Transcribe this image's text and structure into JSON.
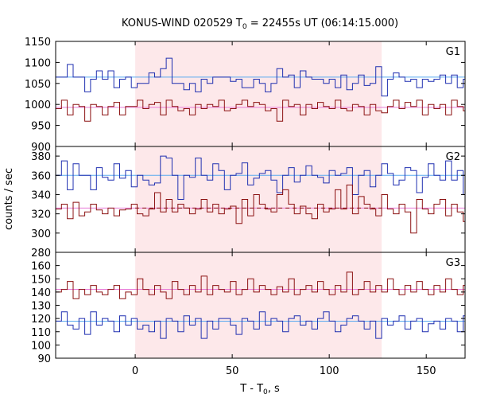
{
  "chart_data": {
    "type": "line",
    "title_main": "KONUS-WIND 020529 T",
    "title_sub": "0",
    "title_rest": " = 22455s UT (06:14:15.000)",
    "xlabel_main": "T - T",
    "xlabel_sub": "0",
    "xlabel_rest": ", s",
    "ylabel": "counts / sec",
    "xlim": [
      -41,
      170
    ],
    "xticks": [
      0,
      50,
      100,
      150
    ],
    "shaded_interval": [
      0,
      127
    ],
    "colors": {
      "shade": "#fde8ea",
      "blue": "#1f2fb0",
      "red": "#8b1010",
      "bg_blue": "#5aaaf0",
      "bg_pink": "#e87ad8"
    },
    "bin_width": 3,
    "x_start": -41,
    "panels": [
      {
        "label": "G1",
        "ylim": [
          900,
          1150
        ],
        "yticks": [
          900,
          950,
          1000,
          1050,
          1100,
          1150
        ],
        "background_blue": 1065,
        "background_pink": 993,
        "background_dashed": null,
        "series_blue": [
          1065,
          1065,
          1095,
          1065,
          1065,
          1030,
          1060,
          1080,
          1060,
          1080,
          1040,
          1060,
          1065,
          1040,
          1050,
          1050,
          1075,
          1065,
          1085,
          1110,
          1050,
          1050,
          1035,
          1050,
          1030,
          1060,
          1050,
          1065,
          1065,
          1065,
          1055,
          1060,
          1040,
          1040,
          1060,
          1050,
          1030,
          1050,
          1085,
          1065,
          1070,
          1040,
          1080,
          1065,
          1060,
          1060,
          1050,
          1060,
          1040,
          1070,
          1035,
          1050,
          1070,
          1045,
          1050,
          1090,
          1020,
          1060,
          1075,
          1065,
          1055,
          1060,
          1040,
          1060,
          1055,
          1060,
          1070,
          1050,
          1070,
          1040,
          1060
        ],
        "series_red": [
          990,
          1010,
          975,
          1000,
          995,
          960,
          1000,
          995,
          975,
          995,
          1005,
          975,
          995,
          995,
          1010,
          990,
          1000,
          1005,
          975,
          1010,
          995,
          985,
          990,
          975,
          1000,
          990,
          1000,
          995,
          1010,
          985,
          990,
          1000,
          1010,
          995,
          1005,
          1000,
          985,
          990,
          960,
          1010,
          995,
          1000,
          975,
          1000,
          990,
          1005,
          995,
          990,
          1010,
          990,
          985,
          1000,
          995,
          975,
          1000,
          985,
          980,
          995,
          1010,
          990,
          1005,
          995,
          1010,
          975,
          1000,
          990,
          1000,
          975,
          1010,
          995,
          985
        ]
      },
      {
        "label": "G2",
        "ylim": [
          280,
          390
        ],
        "yticks": [
          280,
          300,
          320,
          340,
          360,
          380
        ],
        "background_blue": 360,
        "background_pink": 326,
        "background_dashed": 326,
        "series_blue": [
          360,
          375,
          345,
          372,
          360,
          360,
          345,
          368,
          358,
          355,
          372,
          357,
          365,
          348,
          360,
          355,
          350,
          352,
          380,
          378,
          360,
          335,
          360,
          358,
          378,
          360,
          355,
          372,
          365,
          345,
          360,
          362,
          373,
          350,
          357,
          362,
          365,
          355,
          342,
          360,
          368,
          353,
          360,
          370,
          360,
          358,
          352,
          365,
          360,
          362,
          368,
          340,
          360,
          365,
          348,
          360,
          372,
          362,
          350,
          355,
          368,
          365,
          342,
          358,
          372,
          360,
          355,
          375,
          355,
          365,
          340
        ],
        "series_red": [
          325,
          330,
          315,
          332,
          318,
          322,
          330,
          324,
          320,
          326,
          318,
          324,
          325,
          330,
          320,
          318,
          325,
          342,
          322,
          335,
          322,
          330,
          326,
          320,
          325,
          335,
          322,
          330,
          320,
          325,
          328,
          310,
          335,
          318,
          340,
          330,
          325,
          322,
          340,
          345,
          330,
          320,
          328,
          320,
          315,
          330,
          322,
          325,
          345,
          325,
          350,
          320,
          338,
          330,
          325,
          318,
          340,
          325,
          320,
          330,
          322,
          300,
          335,
          325,
          320,
          330,
          335,
          318,
          330,
          322,
          312
        ]
      },
      {
        "label": "G3",
        "ylim": [
          90,
          170
        ],
        "yticks": [
          90,
          100,
          110,
          120,
          130,
          140,
          150,
          160
        ],
        "background_blue": 118,
        "background_pink": 142,
        "background_dashed": null,
        "series_blue": [
          118,
          125,
          115,
          112,
          120,
          108,
          125,
          115,
          120,
          118,
          110,
          122,
          115,
          120,
          112,
          115,
          110,
          118,
          105,
          120,
          118,
          110,
          122,
          115,
          120,
          105,
          118,
          112,
          120,
          120,
          115,
          108,
          120,
          118,
          112,
          125,
          115,
          120,
          118,
          110,
          120,
          122,
          115,
          118,
          112,
          120,
          125,
          118,
          110,
          115,
          120,
          122,
          118,
          112,
          118,
          105,
          120,
          115,
          118,
          122,
          112,
          118,
          120,
          110,
          116,
          118,
          112,
          120,
          118,
          110,
          122
        ],
        "series_red": [
          140,
          142,
          148,
          135,
          142,
          138,
          145,
          140,
          138,
          142,
          145,
          135,
          140,
          138,
          150,
          142,
          138,
          145,
          140,
          135,
          148,
          142,
          138,
          145,
          140,
          152,
          138,
          145,
          142,
          140,
          148,
          138,
          142,
          150,
          140,
          145,
          142,
          138,
          144,
          140,
          150,
          138,
          142,
          145,
          140,
          148,
          142,
          138,
          145,
          140,
          155,
          138,
          142,
          148,
          140,
          145,
          140,
          150,
          142,
          138,
          145,
          140,
          148,
          142,
          138,
          145,
          140,
          150,
          142,
          138,
          145
        ]
      }
    ]
  }
}
